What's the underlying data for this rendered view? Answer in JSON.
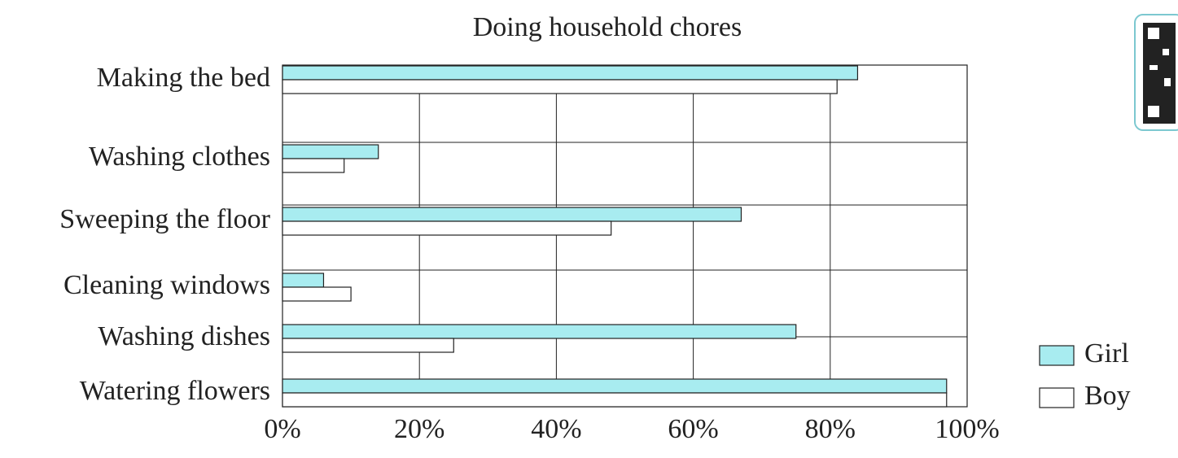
{
  "chart_data": {
    "type": "hbar",
    "title": "Doing household chores",
    "categories": [
      "Making the bed",
      "Washing clothes",
      "Sweeping the floor",
      "Cleaning windows",
      "Washing dishes",
      "Watering flowers"
    ],
    "series": [
      {
        "name": "Girl",
        "color": "#a8ecf0",
        "values": [
          84,
          14,
          67,
          6,
          75,
          97
        ]
      },
      {
        "name": "Boy",
        "color": "#ffffff",
        "values": [
          81,
          9,
          48,
          10,
          25,
          97
        ]
      }
    ],
    "xlim": [
      0,
      100
    ],
    "xticks": [
      {
        "value": 0,
        "label": "0%"
      },
      {
        "value": 20,
        "label": "20%"
      },
      {
        "value": 40,
        "label": "40%"
      },
      {
        "value": 60,
        "label": "60%"
      },
      {
        "value": 80,
        "label": "80%"
      },
      {
        "value": 100,
        "label": "100%"
      }
    ],
    "grid": true,
    "legend": "right"
  }
}
